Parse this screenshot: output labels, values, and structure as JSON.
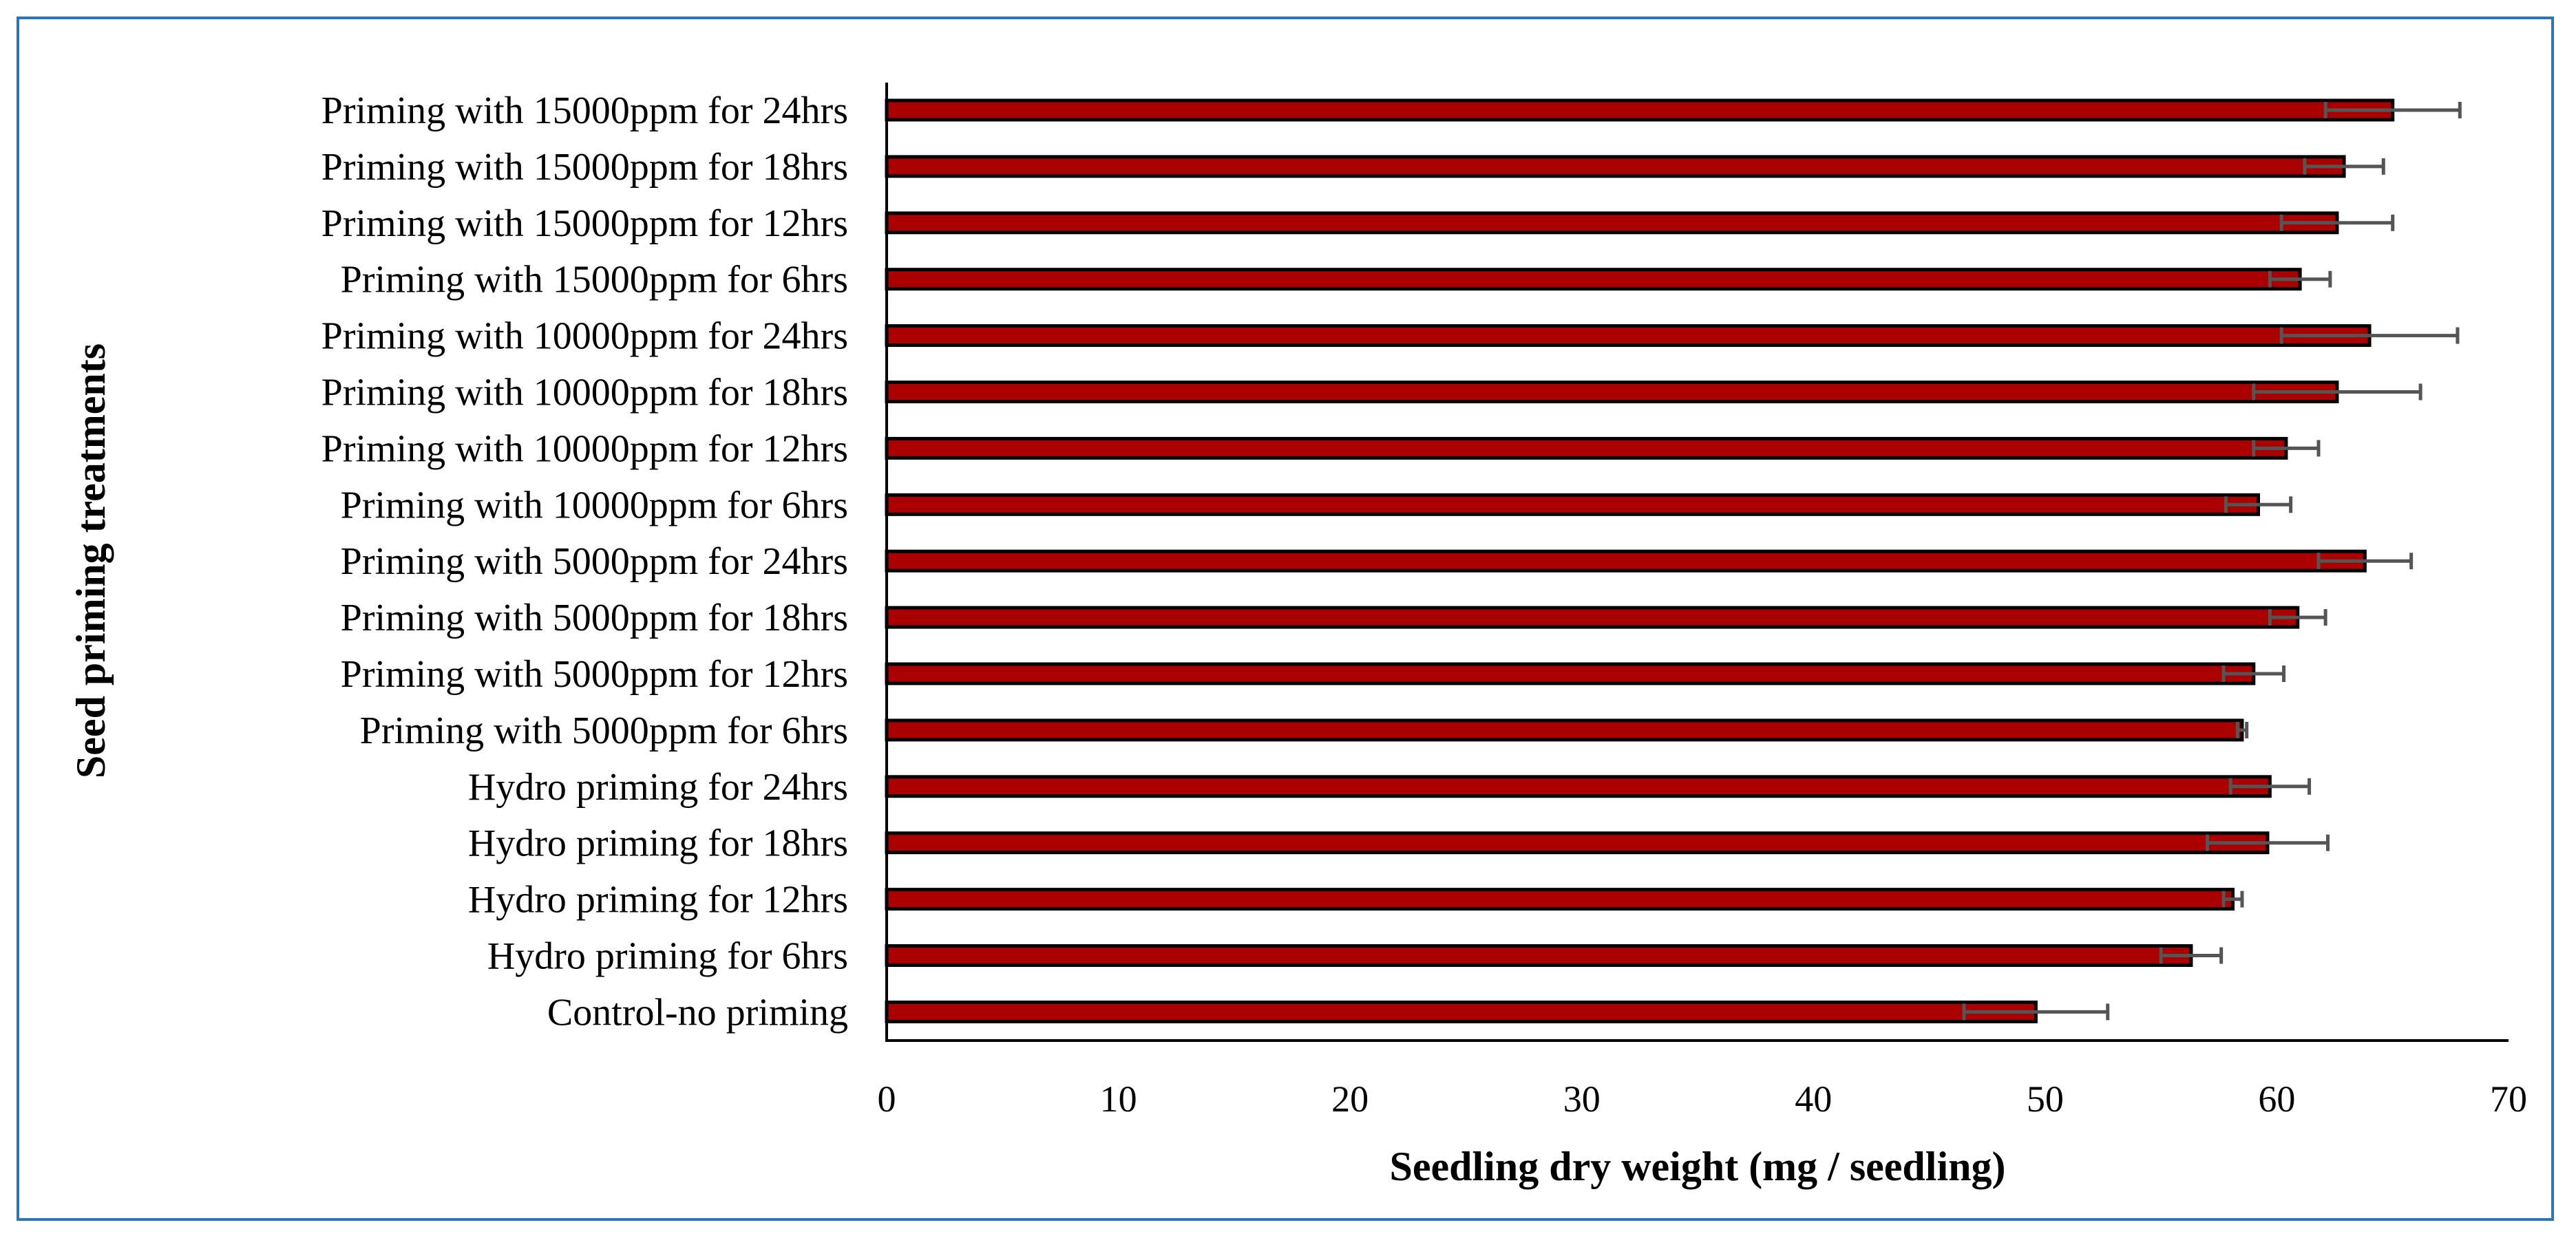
{
  "chart_data": {
    "type": "bar",
    "orientation": "horizontal",
    "title": "",
    "xlabel": "Seedling dry weight (mg / seedling)",
    "ylabel": "Seed priming treatments",
    "xlim": [
      0,
      70
    ],
    "xticks": [
      0,
      10,
      20,
      30,
      40,
      50,
      60,
      70
    ],
    "grid": false,
    "bar_color": "#aa0000",
    "error_color": "#555555",
    "frame_color": "#2e75b6",
    "categories": [
      "Priming with 15000ppm for 24hrs",
      "Priming with 15000ppm for 18hrs",
      "Priming with 15000ppm for 12hrs",
      "Priming with 15000ppm for 6hrs",
      "Priming with 10000ppm for 24hrs",
      "Priming with 10000ppm for 18hrs",
      "Priming with 10000ppm for 12hrs",
      "Priming with 10000ppm for 6hrs",
      "Priming with 5000ppm for 24hrs",
      "Priming with 5000ppm for 18hrs",
      "Priming with 5000ppm for 12hrs",
      "Priming with 5000ppm for 6hrs",
      "Hydro priming for 24hrs",
      "Hydro priming for 18hrs",
      "Hydro priming for 12hrs",
      "Hydro priming for 6hrs",
      "Control-no priming"
    ],
    "values": [
      65.0,
      62.9,
      62.6,
      61.0,
      64.0,
      62.6,
      60.4,
      59.2,
      63.8,
      60.9,
      59.0,
      58.5,
      59.7,
      59.6,
      58.1,
      56.3,
      49.6
    ],
    "errors": [
      2.9,
      1.7,
      2.4,
      1.3,
      3.8,
      3.6,
      1.4,
      1.4,
      2.0,
      1.2,
      1.3,
      0.2,
      1.7,
      2.6,
      0.4,
      1.3,
      3.1
    ]
  }
}
